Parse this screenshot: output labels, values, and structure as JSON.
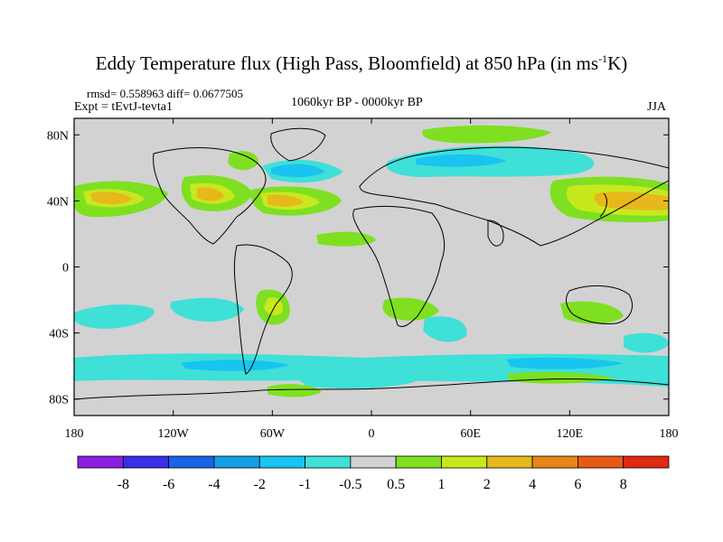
{
  "title": {
    "main": "Eddy Temperature flux (High Pass, Bloomfield) at 850 hPa (in ms",
    "sup": "-1",
    "tail": "K)"
  },
  "stats": {
    "rmsd_diff": "rmsd= 0.558963 diff= 0.0677505",
    "expt": "Expt = tEvtJ-tevta1",
    "period": "1060kyr BP - 0000kyr BP",
    "season": "JJA"
  },
  "chart_data": {
    "type": "heatmap",
    "x_ticks": [
      "180",
      "120W",
      "60W",
      "0",
      "60E",
      "120E",
      "180"
    ],
    "x_tick_values": [
      -180,
      -120,
      -60,
      0,
      60,
      120,
      180
    ],
    "y_ticks": [
      "80N",
      "40N",
      "0",
      "40S",
      "80S"
    ],
    "y_tick_values": [
      80,
      40,
      0,
      -40,
      -80
    ],
    "xlim": [
      -180,
      180
    ],
    "ylim": [
      -90,
      90
    ],
    "colorbar": {
      "labels": [
        "-8",
        "-6",
        "-4",
        "-2",
        "-1",
        "-0.5",
        "0.5",
        "1",
        "2",
        "4",
        "6",
        "8"
      ],
      "colors": [
        "#8a1fe0",
        "#3c2ee6",
        "#1a63e6",
        "#149ee8",
        "#19c4f0",
        "#3ee0d8",
        "#d2d2d2",
        "#7ee020",
        "#c8e81e",
        "#e6b81c",
        "#e6861a",
        "#e65a16",
        "#e02a10"
      ]
    },
    "background": "#d2d2d2"
  }
}
